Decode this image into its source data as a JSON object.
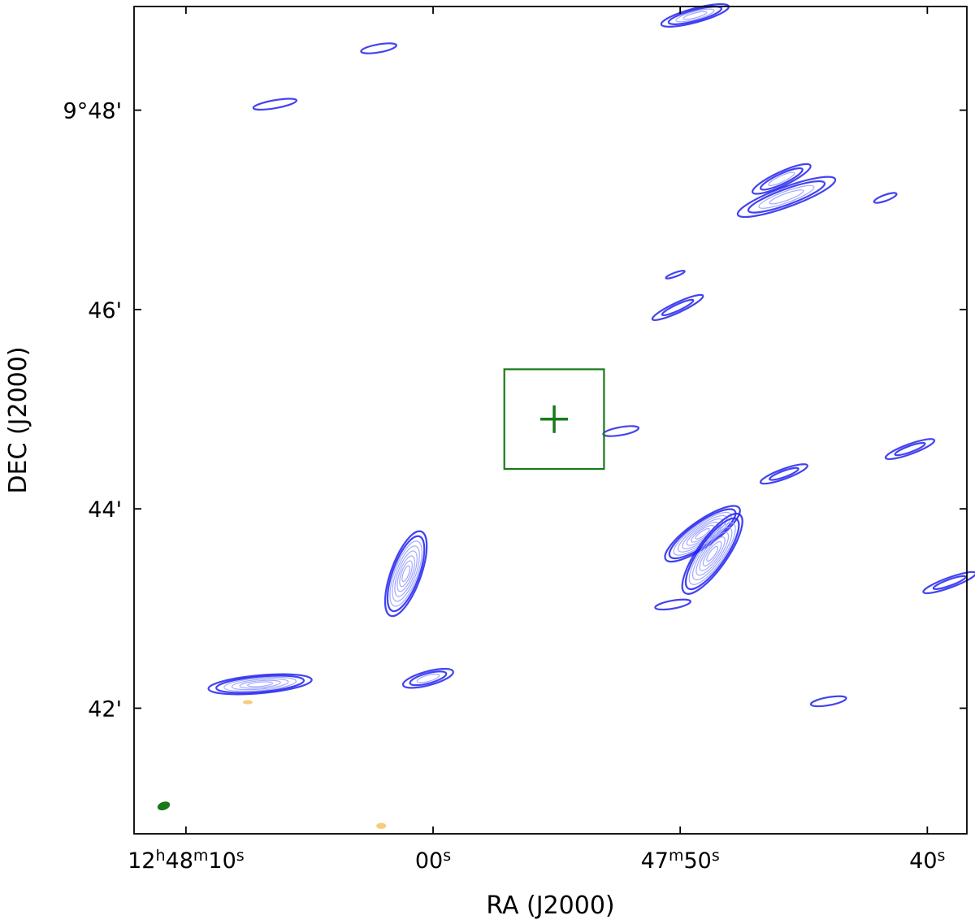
{
  "chart_data": {
    "type": "contour",
    "xlabel": "RA (J2000)",
    "ylabel": "DEC (J2000)",
    "x_ticks": [
      {
        "value": "12h48m10s",
        "parts": [
          "12",
          "h",
          "48",
          "m",
          "10",
          "s"
        ]
      },
      {
        "value": "12h48m00s",
        "parts": [
          "00",
          "s"
        ]
      },
      {
        "value": "12h47m50s",
        "parts": [
          "47",
          "m",
          "50",
          "s"
        ]
      },
      {
        "value": "12h47m40s",
        "parts": [
          "40",
          "s"
        ]
      }
    ],
    "y_ticks": [
      {
        "value_arcmin": 588,
        "label": "9°48'"
      },
      {
        "value_arcmin": 586,
        "label": "46'"
      },
      {
        "value_arcmin": 584,
        "label": "44'"
      },
      {
        "value_arcmin": 582,
        "label": "42'"
      }
    ],
    "x_range_s": [
      12.1,
      -21.6
    ],
    "y_range_arcmin": [
      580.74,
      589.04
    ],
    "colors": {
      "contours": "#2222ee",
      "contour_inner": "#9aa0ff",
      "marker": "#1a7a1a",
      "negative_contours": "#f2c15a",
      "beam": "#1a7a1a"
    },
    "target": {
      "marker": "+",
      "ra_offset_s": -4.9,
      "dec_arcmin": 584.9,
      "box_half_size_arcmin": 0.5
    },
    "beam": {
      "ra_offset_s": 10.9,
      "dec_arcmin": 581.02
    },
    "sources": [
      {
        "ra": -10.6,
        "dec": 588.95,
        "a": 0.35,
        "b": 0.07,
        "ang": -15,
        "n": 4
      },
      {
        "ra": 2.2,
        "dec": 588.62,
        "a": 0.18,
        "b": 0.04,
        "ang": -10,
        "n": 1
      },
      {
        "ra": 6.4,
        "dec": 588.06,
        "a": 0.22,
        "b": 0.04,
        "ang": -10,
        "n": 1
      },
      {
        "ra": -14.1,
        "dec": 587.31,
        "a": 0.32,
        "b": 0.07,
        "ang": -25,
        "n": 3
      },
      {
        "ra": -14.3,
        "dec": 587.13,
        "a": 0.52,
        "b": 0.1,
        "ang": -20,
        "n": 4
      },
      {
        "ra": -18.3,
        "dec": 587.12,
        "a": 0.12,
        "b": 0.03,
        "ang": -20,
        "n": 1
      },
      {
        "ra": -9.8,
        "dec": 586.35,
        "a": 0.1,
        "b": 0.02,
        "ang": -20,
        "n": 1
      },
      {
        "ra": -9.9,
        "dec": 586.02,
        "a": 0.28,
        "b": 0.05,
        "ang": -25,
        "n": 2
      },
      {
        "ra": -7.6,
        "dec": 584.78,
        "a": 0.18,
        "b": 0.04,
        "ang": -10,
        "n": 1
      },
      {
        "ra": -19.3,
        "dec": 584.6,
        "a": 0.26,
        "b": 0.05,
        "ang": -20,
        "n": 2
      },
      {
        "ra": -14.2,
        "dec": 584.35,
        "a": 0.25,
        "b": 0.05,
        "ang": -20,
        "n": 2
      },
      {
        "ra": -10.9,
        "dec": 583.75,
        "a": 0.45,
        "b": 0.13,
        "ang": -35,
        "n": 8
      },
      {
        "ra": -11.3,
        "dec": 583.55,
        "a": 0.48,
        "b": 0.15,
        "ang": -55,
        "n": 8
      },
      {
        "ra": 1.1,
        "dec": 583.35,
        "a": 0.45,
        "b": 0.15,
        "ang": -70,
        "n": 8
      },
      {
        "ra": -20.9,
        "dec": 583.26,
        "a": 0.28,
        "b": 0.05,
        "ang": -20,
        "n": 2
      },
      {
        "ra": -9.7,
        "dec": 583.04,
        "a": 0.18,
        "b": 0.04,
        "ang": -10,
        "n": 1
      },
      {
        "ra": 0.2,
        "dec": 582.3,
        "a": 0.26,
        "b": 0.07,
        "ang": -15,
        "n": 3
      },
      {
        "ra": 7.0,
        "dec": 582.24,
        "a": 0.52,
        "b": 0.09,
        "ang": -5,
        "n": 6
      },
      {
        "ra": -16.0,
        "dec": 582.07,
        "a": 0.18,
        "b": 0.04,
        "ang": -10,
        "n": 1
      }
    ],
    "negative_sources": [
      {
        "ra": 7.5,
        "dec": 582.06,
        "a": 0.05,
        "b": 0.02,
        "ang": 0
      },
      {
        "ra": 2.1,
        "dec": 580.82,
        "a": 0.05,
        "b": 0.03,
        "ang": 0
      }
    ]
  }
}
